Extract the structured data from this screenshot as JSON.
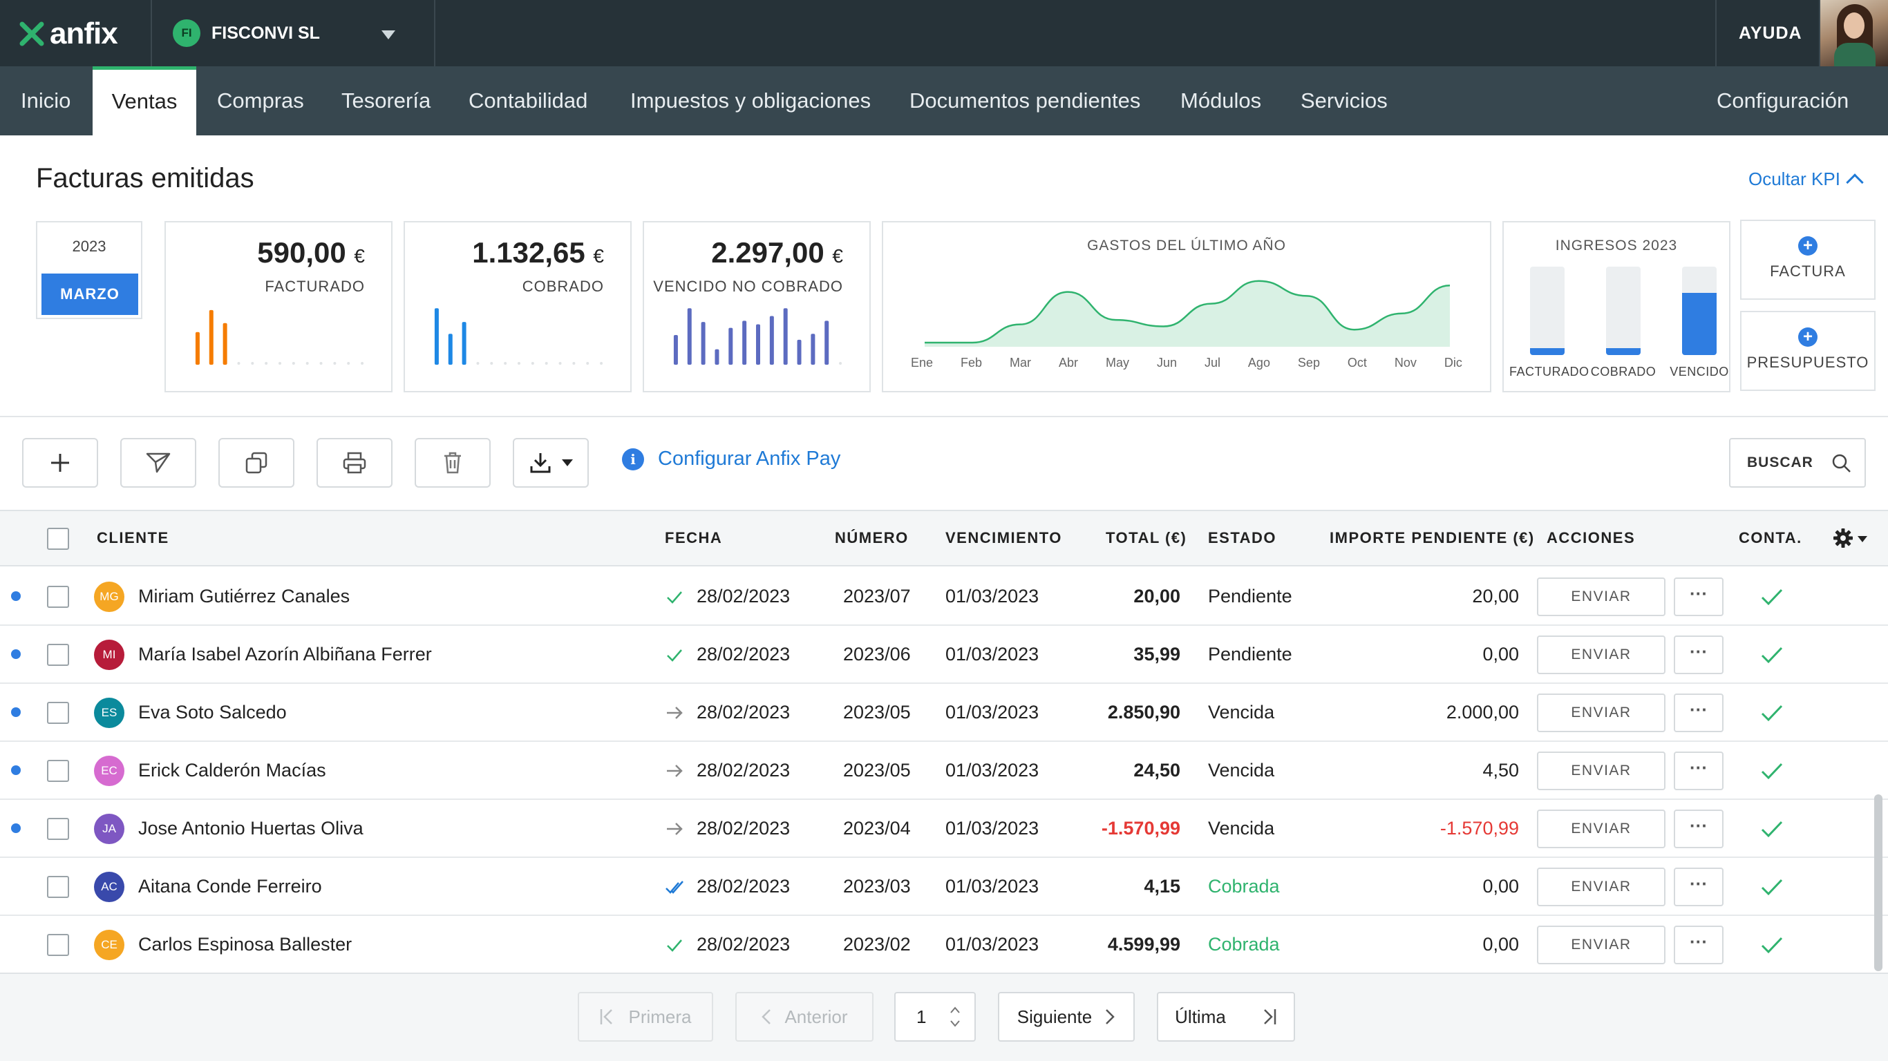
{
  "app": {
    "logo_text": "anfix",
    "company_initials": "FI",
    "company_name": "FISCONVI SL",
    "help": "AYUDA"
  },
  "nav": {
    "items": [
      "Inicio",
      "Ventas",
      "Compras",
      "Tesorería",
      "Contabilidad",
      "Impuestos y obligaciones",
      "Documentos pendientes",
      "Módulos",
      "Servicios"
    ],
    "active": "Ventas",
    "config": "Configuración"
  },
  "page": {
    "title": "Facturas emitidas",
    "hide_kpi": "Ocultar KPI"
  },
  "period": {
    "year": "2023",
    "month": "MARZO"
  },
  "kpis": [
    {
      "amount": "590,00",
      "currency": "€",
      "label": "FACTURADO",
      "color": "#f57c00",
      "bars": [
        0.55,
        0.92,
        0.7
      ]
    },
    {
      "amount": "1.132,65",
      "currency": "€",
      "label": "COBRADO",
      "color": "#1e88e5",
      "bars": [
        0.95,
        0.52,
        0.72
      ]
    },
    {
      "amount": "2.297,00",
      "currency": "€",
      "label": "VENCIDO NO COBRADO",
      "color": "#5c6bc0",
      "bars": [
        0.5,
        0.95,
        0.72,
        0.26,
        0.62,
        0.74,
        0.68,
        0.82,
        0.95,
        0.42,
        0.52,
        0.74
      ]
    }
  ],
  "gastos_chart": {
    "title": "GASTOS DEL ÚLTIMO AÑO",
    "months": [
      "Ene",
      "Feb",
      "Mar",
      "Abr",
      "May",
      "Jun",
      "Jul",
      "Ago",
      "Sep",
      "Oct",
      "Nov",
      "Dic"
    ],
    "values": [
      0,
      0,
      0.28,
      0.78,
      0.35,
      0.25,
      0.6,
      0.95,
      0.72,
      0.2,
      0.45,
      0.88
    ],
    "color": "#2fb36e"
  },
  "ingresos": {
    "title": "INGRESOS 2023",
    "items": [
      {
        "label": "FACTURADO",
        "fill": 0.08
      },
      {
        "label": "COBRADO",
        "fill": 0.08
      },
      {
        "label": "VENCIDO",
        "fill": 0.7
      }
    ]
  },
  "actions": {
    "factura": "FACTURA",
    "presupuesto": "PRESUPUESTO"
  },
  "toolbar": {
    "configurar_pay": "Configurar Anfix Pay",
    "info_icon": "i",
    "search": "BUSCAR"
  },
  "table": {
    "headers": {
      "cliente": "CLIENTE",
      "fecha": "FECHA",
      "numero": "NÚMERO",
      "vencimiento": "VENCIMIENTO",
      "total": "TOTAL (€)",
      "estado": "ESTADO",
      "pendiente": "IMPORTE PENDIENTE (€)",
      "acciones": "ACCIONES",
      "conta": "CONTA."
    },
    "send_label": "ENVIAR",
    "more_label": "···",
    "rows": [
      {
        "unread": true,
        "initials": "MG",
        "color": "#f5a623",
        "client": "Miriam Gutiérrez Canales",
        "icon": "check",
        "fecha": "28/02/2023",
        "numero": "2023/07",
        "vencimiento": "01/03/2023",
        "total": "20,00",
        "estado": "Pendiente",
        "pendiente": "20,00"
      },
      {
        "unread": true,
        "initials": "MI",
        "color": "#b71c3a",
        "client": "María Isabel Azorín Albiñana Ferrer",
        "icon": "check",
        "fecha": "28/02/2023",
        "numero": "2023/06",
        "vencimiento": "01/03/2023",
        "total": "35,99",
        "estado": "Pendiente",
        "pendiente": "0,00"
      },
      {
        "unread": true,
        "initials": "ES",
        "color": "#0b8a9c",
        "client": "Eva Soto Salcedo",
        "icon": "arrow",
        "fecha": "28/02/2023",
        "numero": "2023/05",
        "vencimiento": "01/03/2023",
        "total": "2.850,90",
        "estado": "Vencida",
        "pendiente": "2.000,00"
      },
      {
        "unread": true,
        "initials": "EC",
        "color": "#d66bd0",
        "client": "Erick Calderón Macías",
        "icon": "arrow",
        "fecha": "28/02/2023",
        "numero": "2023/05",
        "vencimiento": "01/03/2023",
        "total": "24,50",
        "estado": "Vencida",
        "pendiente": "4,50"
      },
      {
        "unread": true,
        "initials": "JA",
        "color": "#7e57c2",
        "client": "Jose Antonio Huertas Oliva",
        "icon": "arrow",
        "fecha": "28/02/2023",
        "numero": "2023/04",
        "vencimiento": "01/03/2023",
        "total": "-1.570,99",
        "estado": "Vencida",
        "pendiente": "-1.570,99",
        "negative": true
      },
      {
        "unread": false,
        "initials": "AC",
        "color": "#3949ab",
        "client": "Aitana Conde Ferreiro",
        "icon": "double-check",
        "fecha": "28/02/2023",
        "numero": "2023/03",
        "vencimiento": "01/03/2023",
        "total": "4,15",
        "estado": "Cobrada",
        "pendiente": "0,00",
        "paid": true
      },
      {
        "unread": false,
        "initials": "CE",
        "color": "#f5a623",
        "client": "Carlos Espinosa Ballester",
        "icon": "check",
        "fecha": "28/02/2023",
        "numero": "2023/02",
        "vencimiento": "01/03/2023",
        "total": "4.599,99",
        "estado": "Cobrada",
        "pendiente": "0,00",
        "paid": true
      }
    ]
  },
  "pagination": {
    "first": "Primera",
    "prev": "Anterior",
    "page": "1",
    "next": "Siguiente",
    "last": "Última"
  }
}
